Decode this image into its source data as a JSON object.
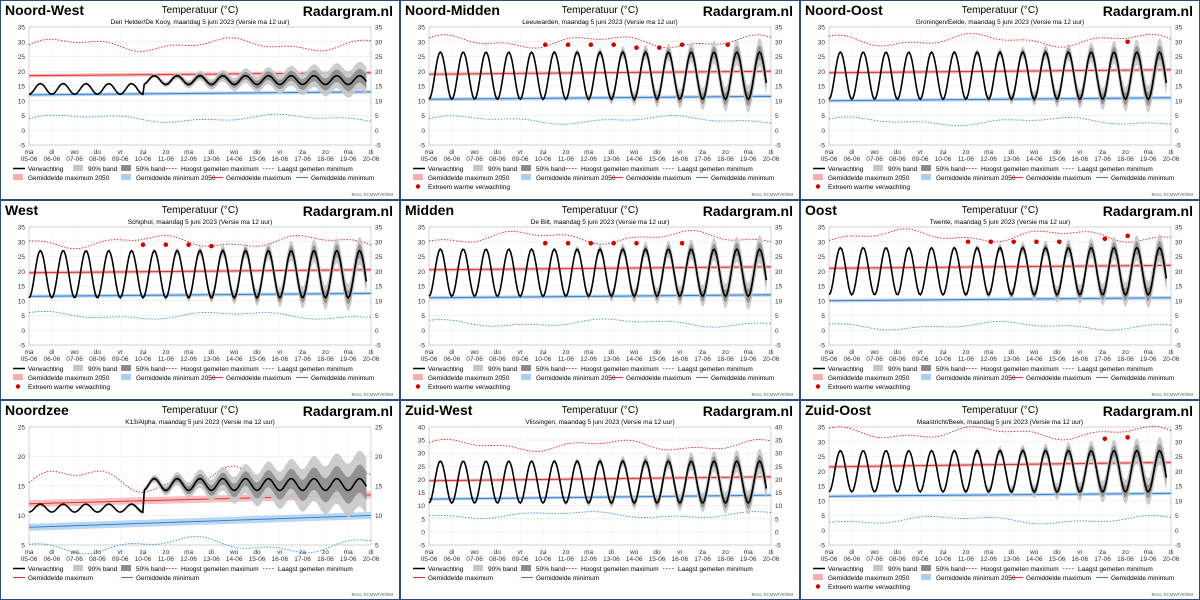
{
  "brand": "Radargram.nl",
  "chart_title": "Temperatuur (°C)",
  "source_credit": "Bron: ECMWF/KNMI",
  "days": [
    "ma",
    "di",
    "wo",
    "do",
    "vr",
    "za",
    "zo",
    "ma",
    "di",
    "wo",
    "do",
    "vr",
    "za",
    "zo",
    "ma",
    "di"
  ],
  "dates": [
    "05-06",
    "06-06",
    "07-06",
    "08-06",
    "09-06",
    "10-06",
    "11-06",
    "12-06",
    "13-06",
    "14-06",
    "15-06",
    "16-06",
    "17-06",
    "18-06",
    "19-06",
    "20-06"
  ],
  "legend_labels": {
    "verwachting": "Verwachting",
    "band90": "90% band",
    "band50": "50% band",
    "hoogst": "Hoogst gemeten maximum",
    "laagst": "Laagst gemeten minimum",
    "gemmax2050": "Gemiddelde maximum 2050",
    "gemmin2050": "Gemiddelde minimum 2050",
    "gemmax": "Gemiddelde maximum",
    "gemmin": "Gemiddelde minimum",
    "extreem": "Extreem warme verwachting"
  },
  "colors": {
    "forecast": "#000000",
    "band90": "#c8c8c8",
    "band50": "#8c8c8c",
    "record_max": "#e02020",
    "record_min": "#3a8fd8",
    "mean_max": "#e03030",
    "mean_min": "#3a7fd0",
    "mean_max_2050": "#f4b0b0",
    "mean_min_2050": "#a8cdef",
    "extreme": "#d00000",
    "panel_border": "#2c4a7a"
  },
  "chart_data": [
    {
      "type": "line",
      "region": "Noord-West",
      "subtitle": "Den Helder/De Kooy, maandag 5 juni 2023 (Versie ma 12 uur)",
      "ylim": [
        -5,
        35
      ],
      "yticks": [
        -5,
        0,
        5,
        10,
        15,
        20,
        25,
        30,
        35
      ],
      "legend_rows": "A",
      "mean_max": [
        18.5,
        19.5
      ],
      "mean_min": [
        12,
        13
      ],
      "record_max_base": 29,
      "record_min_base": 4,
      "forecast_min": 12,
      "forecast_max": 16,
      "calm_until": 5,
      "later_min": 15.5,
      "later_max": 18.5,
      "amp": 1.5,
      "extremes": []
    },
    {
      "type": "line",
      "region": "Noord-Midden",
      "subtitle": "Leeuwarden, maandag 5 juni 2023 (Versie ma 12 uur)",
      "ylim": [
        -5,
        35
      ],
      "yticks": [
        -5,
        0,
        5,
        10,
        15,
        20,
        25,
        30,
        35
      ],
      "legend_rows": "B",
      "mean_max": [
        19,
        20
      ],
      "mean_min": [
        10.5,
        11.5
      ],
      "record_max_base": 30,
      "record_min_base": 3.5,
      "forecast_min": 10,
      "forecast_max": 20,
      "calm_until": 0,
      "later_min": 11,
      "later_max": 26,
      "amp": 8,
      "extremes": [
        [
          5.1,
          29
        ],
        [
          6.1,
          29
        ],
        [
          7.1,
          29
        ],
        [
          8.1,
          29
        ],
        [
          9.1,
          28
        ],
        [
          10.1,
          28
        ],
        [
          11.1,
          29
        ],
        [
          13.1,
          29
        ]
      ]
    },
    {
      "type": "line",
      "region": "Noord-Oost",
      "subtitle": "Groningen/Eelde, maandag 5 juni 2023 (Versie ma 12 uur)",
      "ylim": [
        -5,
        35
      ],
      "yticks": [
        -5,
        0,
        5,
        10,
        15,
        20,
        25,
        30,
        35
      ],
      "legend_rows": "B",
      "mean_max": [
        19.5,
        20.5
      ],
      "mean_min": [
        10,
        11
      ],
      "record_max_base": 30.5,
      "record_min_base": 3,
      "forecast_min": 10,
      "forecast_max": 20,
      "calm_until": 0,
      "later_min": 11,
      "later_max": 26,
      "amp": 8,
      "extremes": [
        [
          13.1,
          30
        ]
      ]
    },
    {
      "type": "line",
      "region": "West",
      "subtitle": "Schiphol, maandag 5 juni 2023 (Versie ma 12 uur)",
      "ylim": [
        -5,
        35
      ],
      "yticks": [
        -5,
        0,
        5,
        10,
        15,
        20,
        25,
        30,
        35
      ],
      "legend_rows": "B",
      "mean_max": [
        19.5,
        20.5
      ],
      "mean_min": [
        11.5,
        12.5
      ],
      "record_max_base": 30,
      "record_min_base": 5,
      "forecast_min": 10,
      "forecast_max": 22,
      "calm_until": 0,
      "later_min": 12,
      "later_max": 26,
      "amp": 8,
      "extremes": [
        [
          5,
          29
        ],
        [
          6,
          29
        ],
        [
          7,
          29
        ],
        [
          8,
          28.5
        ]
      ]
    },
    {
      "type": "line",
      "region": "Midden",
      "subtitle": "De Bilt, maandag 5 juni 2023 (Versie ma 12 uur)",
      "ylim": [
        -5,
        35
      ],
      "yticks": [
        -5,
        0,
        5,
        10,
        15,
        20,
        25,
        30,
        35
      ],
      "legend_rows": "B",
      "mean_max": [
        20.5,
        21.5
      ],
      "mean_min": [
        11,
        12
      ],
      "record_max_base": 31.5,
      "record_min_base": 2.5,
      "forecast_min": 10,
      "forecast_max": 22,
      "calm_until": 0,
      "later_min": 12,
      "later_max": 27,
      "amp": 8,
      "extremes": [
        [
          5.1,
          29.5
        ],
        [
          6.1,
          29.5
        ],
        [
          7.1,
          29.5
        ],
        [
          8.1,
          29.5
        ],
        [
          9.1,
          29.5
        ],
        [
          11.1,
          29.5
        ]
      ]
    },
    {
      "type": "line",
      "region": "Oost",
      "subtitle": "Twente, maandag 5 juni 2023 (Versie ma 12 uur)",
      "ylim": [
        -5,
        35
      ],
      "yticks": [
        -5,
        0,
        5,
        10,
        15,
        20,
        25,
        30,
        35
      ],
      "legend_rows": "B",
      "mean_max": [
        21,
        22
      ],
      "mean_min": [
        10,
        11
      ],
      "record_max_base": 32,
      "record_min_base": 1.5,
      "forecast_min": 10,
      "forecast_max": 22,
      "calm_until": 0,
      "later_min": 12,
      "later_max": 28,
      "amp": 8,
      "extremes": [
        [
          6.1,
          30
        ],
        [
          7.1,
          30
        ],
        [
          8.1,
          30
        ],
        [
          9.1,
          30
        ],
        [
          10.1,
          30
        ],
        [
          12.1,
          31
        ],
        [
          13.1,
          32
        ]
      ]
    },
    {
      "type": "line",
      "region": "Noordzee",
      "subtitle": "K13/Alpha, maandag 5 juni 2023 (Versie ma 12 uur)",
      "ylim": [
        5,
        25
      ],
      "yticks": [
        5,
        10,
        15,
        20,
        25
      ],
      "legend_rows": "C",
      "mean_max": [
        12,
        13.5
      ],
      "mean_min": [
        8,
        10
      ],
      "record_max_base": 16,
      "record_min_base": 5,
      "forecast_min": 10.5,
      "forecast_max": 12,
      "calm_until": 5,
      "later_min": 13.5,
      "later_max": 17,
      "amp": 1,
      "extremes": []
    },
    {
      "type": "line",
      "region": "Zuid-West",
      "subtitle": "Vlissingen, maandag 5 juni 2023 (Versie ma 12 uur)",
      "ylim": [
        -5,
        40
      ],
      "yticks": [
        -5,
        0,
        5,
        10,
        15,
        20,
        25,
        30,
        35,
        40
      ],
      "legend_rows": "C",
      "mean_max": [
        19.5,
        21
      ],
      "mean_min": [
        12.5,
        14
      ],
      "record_max_base": 33,
      "record_min_base": 6.5,
      "forecast_min": 10,
      "forecast_max": 22,
      "calm_until": 0,
      "later_min": 12,
      "later_max": 26,
      "amp": 8,
      "extremes": []
    },
    {
      "type": "line",
      "region": "Zuid-Oost",
      "subtitle": "Maastricht/Beek, maandag 5 juni 2023 (Versie ma 12 uur)",
      "ylim": [
        -5,
        35
      ],
      "yticks": [
        -5,
        0,
        5,
        10,
        15,
        20,
        25,
        30,
        35
      ],
      "legend_rows": "B",
      "mean_max": [
        21.5,
        23
      ],
      "mean_min": [
        11.5,
        12.5
      ],
      "record_max_base": 33,
      "record_min_base": 3.5,
      "forecast_min": 13,
      "forecast_max": 24,
      "calm_until": 0,
      "later_min": 13,
      "later_max": 27,
      "amp": 7,
      "extremes": [
        [
          12.1,
          31
        ],
        [
          13.1,
          31.5
        ]
      ]
    }
  ]
}
